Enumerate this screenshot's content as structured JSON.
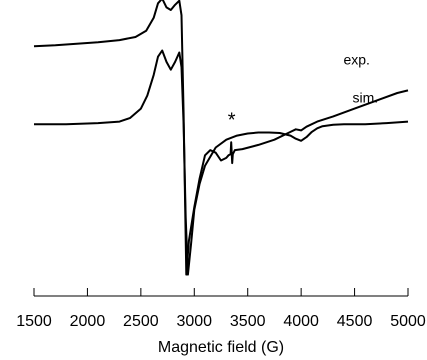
{
  "chart_data": {
    "type": "line",
    "title": "",
    "xlabel": "Magnetic field (G)",
    "ylabel": "",
    "xlim": [
      1500,
      5000
    ],
    "ylim": [
      -3.1,
      2.2
    ],
    "grid": false,
    "legend": "none",
    "xticks": [
      1500,
      2000,
      2500,
      3000,
      3500,
      4000,
      4500,
      5000
    ],
    "xtick_labels": [
      "1500",
      "2000",
      "2500",
      "3000",
      "3500",
      "4000",
      "4500",
      "5000"
    ],
    "series": [
      {
        "name": "exp.",
        "color": "#000000",
        "x": [
          1500,
          1700,
          1900,
          2100,
          2300,
          2450,
          2550,
          2620,
          2660,
          2700,
          2740,
          2780,
          2820,
          2860,
          2880,
          2900,
          2925,
          2950,
          3000,
          3050,
          3100,
          3150,
          3200,
          3250,
          3300,
          3320,
          3340,
          3345,
          3355,
          3360,
          3380,
          3450,
          3600,
          3750,
          3900,
          3950,
          4000,
          4050,
          4150,
          4300,
          4500,
          4700,
          4900,
          5000
        ],
        "y": [
          1.5,
          1.52,
          1.55,
          1.58,
          1.62,
          1.68,
          1.8,
          2.05,
          2.33,
          2.42,
          2.25,
          2.2,
          2.3,
          2.38,
          2.1,
          0.2,
          -2.9,
          -2.25,
          -1.6,
          -1.05,
          -0.6,
          -0.5,
          -0.55,
          -0.7,
          -0.65,
          -0.6,
          -0.58,
          -0.35,
          -0.75,
          -0.58,
          -0.5,
          -0.48,
          -0.4,
          -0.3,
          -0.15,
          -0.1,
          -0.12,
          -0.05,
          0.05,
          0.15,
          0.3,
          0.45,
          0.6,
          0.65
        ]
      },
      {
        "name": "sim.",
        "color": "#000000",
        "x": [
          1500,
          1800,
          2100,
          2300,
          2400,
          2500,
          2560,
          2620,
          2660,
          2700,
          2740,
          2780,
          2820,
          2860,
          2880,
          2900,
          2920,
          2940,
          2970,
          3000,
          3050,
          3100,
          3200,
          3300,
          3400,
          3500,
          3600,
          3700,
          3800,
          3900,
          3950,
          4000,
          4050,
          4100,
          4150,
          4200,
          4300,
          4400,
          4600,
          4800,
          5000
        ],
        "y": [
          0.0,
          0.0,
          0.02,
          0.05,
          0.12,
          0.3,
          0.55,
          0.95,
          1.3,
          1.42,
          1.2,
          1.05,
          1.2,
          1.38,
          1.1,
          0.0,
          -1.8,
          -2.9,
          -2.3,
          -1.65,
          -1.15,
          -0.8,
          -0.45,
          -0.3,
          -0.22,
          -0.18,
          -0.16,
          -0.16,
          -0.17,
          -0.22,
          -0.28,
          -0.32,
          -0.25,
          -0.15,
          -0.08,
          -0.04,
          -0.01,
          0.0,
          0.0,
          0.02,
          0.05
        ]
      }
    ],
    "annotations": [
      {
        "text": "*",
        "x": 3350,
        "y": -0.05
      },
      {
        "text": "exp.",
        "x": 4520,
        "y": 1.15
      },
      {
        "text": "sim.",
        "x": 4600,
        "y": 0.42
      }
    ]
  }
}
